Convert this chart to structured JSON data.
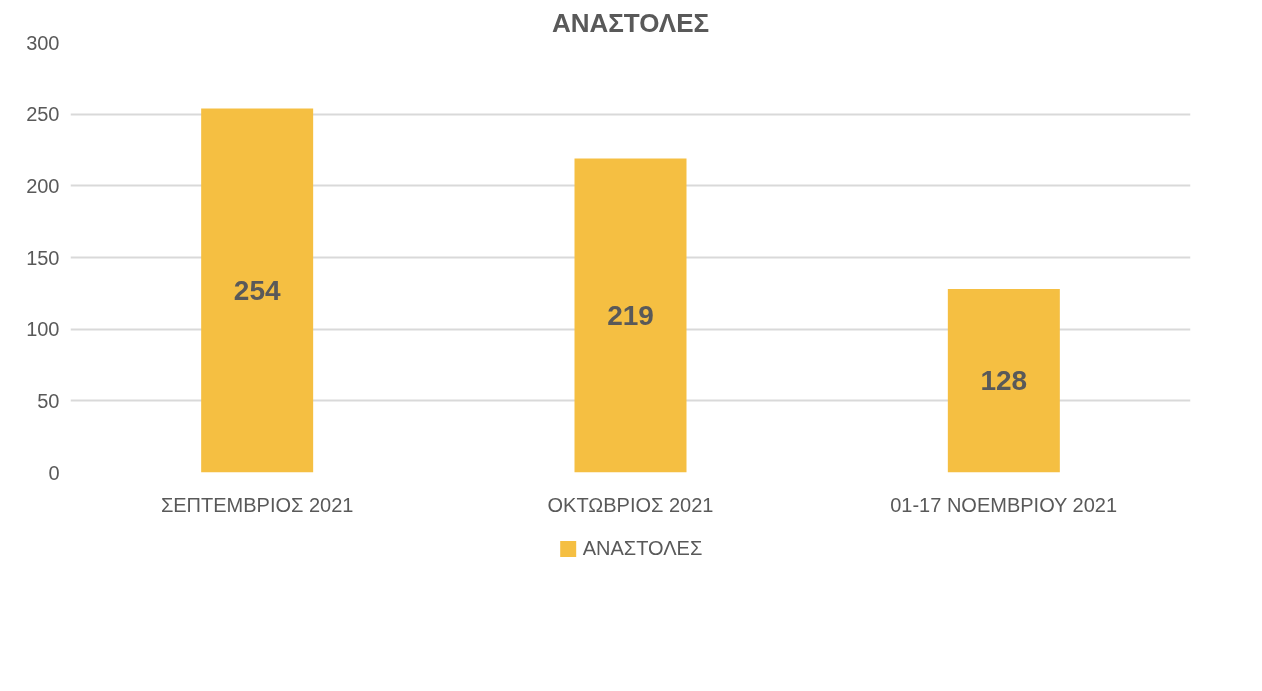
{
  "chart_data": {
    "type": "bar",
    "title": "ΑΝΑΣΤΟΛΕΣ",
    "categories": [
      "ΣΕΠΤΕΜΒΡΙΟΣ 2021",
      "ΟΚΤΩΒΡΙΟΣ 2021",
      "01-17 ΝΟΕΜΒΡΙΟΥ 2021"
    ],
    "series": [
      {
        "name": "ΑΝΑΣΤΟΛΕΣ",
        "color": "#f5bf42",
        "values": [
          254,
          219,
          128
        ]
      }
    ],
    "ylim": [
      0,
      300
    ],
    "yticks": [
      0,
      50,
      100,
      150,
      200,
      250,
      300
    ],
    "grid": "y",
    "legend": "bottom",
    "data_labels": true
  }
}
